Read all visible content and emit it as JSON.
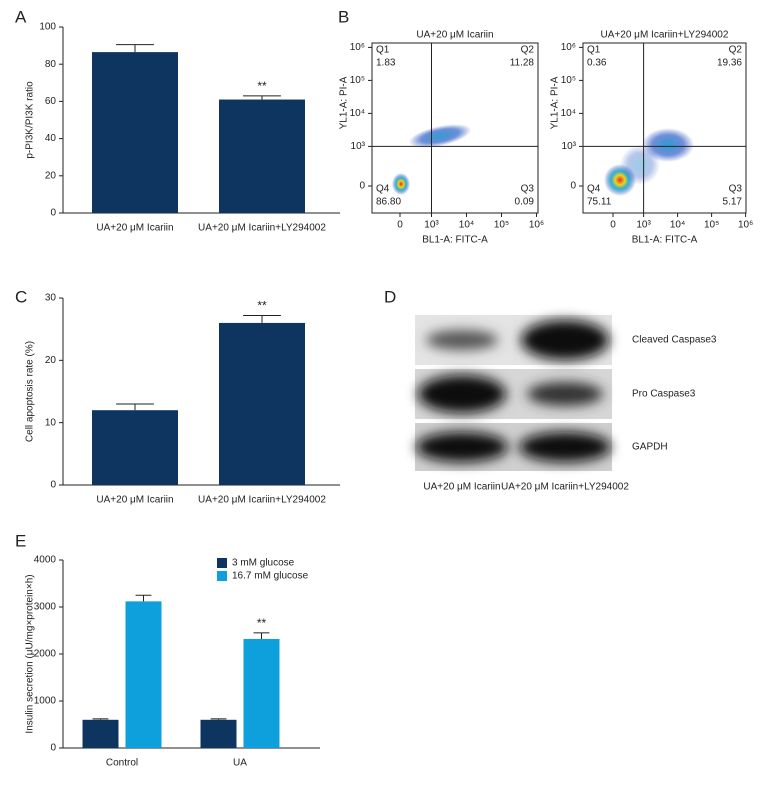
{
  "chart_data": [
    {
      "type": "bar",
      "panel": "A",
      "categories": [
        "UA+20 μM Icariin",
        "UA+20 μM Icariin+LY294002"
      ],
      "values": [
        86.5,
        61
      ],
      "errors": [
        4,
        2
      ],
      "color": "#0e3560",
      "ylabel": "p-PI3K/PI3K ratio",
      "ylim": [
        0,
        100
      ],
      "yticks": [
        0,
        20,
        40,
        60,
        80,
        100
      ],
      "annotations": [
        {
          "text": "**",
          "category": "UA+20 μM Icariin+LY294002"
        }
      ]
    },
    {
      "type": "flow",
      "panel": "B",
      "title": "UA+20 μM Icariin",
      "xlabel": "BL1-A: FITC-A",
      "ylabel": "YL1-A: PI-A",
      "xticks": [
        0,
        {
          "value": 1000,
          "label": "10³"
        },
        {
          "value": 10000,
          "label": "10⁴"
        },
        {
          "value": 100000,
          "label": "10⁵"
        },
        {
          "value": 1000000,
          "label": "10⁶"
        }
      ],
      "yticks": [
        0,
        {
          "value": 1000,
          "label": "10³"
        },
        {
          "value": 10000,
          "label": "10⁴"
        },
        {
          "value": 100000,
          "label": "10⁵"
        },
        {
          "value": 1000000,
          "label": "10⁶"
        }
      ],
      "gates": [
        1000,
        1000
      ],
      "quadrants": [
        "Q1",
        "Q2",
        "Q3",
        "Q4"
      ],
      "values": [
        1.83,
        11.28,
        0.09,
        86.8
      ],
      "value_labels": [
        "1.83",
        "11.28",
        "0.09",
        "86.80"
      ]
    },
    {
      "type": "flow",
      "title": "UA+20 μM Icariin+LY294002",
      "xlabel": "BL1-A: FITC-A",
      "ylabel": "YL1-A: PI-A",
      "xticks": [
        0,
        {
          "value": 1000,
          "label": "10³"
        },
        {
          "value": 10000,
          "label": "10⁴"
        },
        {
          "value": 100000,
          "label": "10⁵"
        },
        {
          "value": 1000000,
          "label": "10⁶"
        }
      ],
      "yticks": [
        0,
        {
          "value": 1000,
          "label": "10³"
        },
        {
          "value": 10000,
          "label": "10⁴"
        },
        {
          "value": 100000,
          "label": "10⁵"
        },
        {
          "value": 1000000,
          "label": "10⁶"
        }
      ],
      "gates": [
        1000,
        1000
      ],
      "quadrants": [
        "Q1",
        "Q2",
        "Q3",
        "Q4"
      ],
      "values": [
        0.36,
        19.36,
        5.17,
        75.11
      ]
    },
    {
      "type": "bar",
      "panel": "C",
      "categories": [
        "UA+20 μM Icariin",
        "UA+20 μM Icariin+LY294002"
      ],
      "values": [
        12,
        26
      ],
      "errors": [
        1,
        1.2
      ],
      "color": "#0e3560",
      "ylabel": "Cell apoptosis rate (%)",
      "ylim": [
        0,
        30
      ],
      "yticks": [
        0,
        10,
        20,
        30
      ],
      "annotations": [
        {
          "text": "**",
          "category": "UA+20 μM Icariin+LY294002"
        }
      ]
    },
    {
      "type": "blot",
      "panel": "D",
      "rows": [
        "Cleaved Caspase3",
        "Pro Caspase3",
        "GAPDH"
      ],
      "lanes": [
        "UA+20 μM Icariin",
        "UA+20 μM Icariin+LY294002"
      ]
    },
    {
      "type": "bar",
      "panel": "E",
      "categories": [
        "Control",
        "UA"
      ],
      "ylabel": "Insulin secretion (μU/mg×protein×h)",
      "ylim": [
        0,
        4000
      ],
      "yticks": [
        0,
        1000,
        2000,
        3000,
        4000
      ],
      "legend": "upper left",
      "series": [
        {
          "name": "3 mM glucose",
          "color": "#0e3560",
          "values": [
            600,
            600
          ],
          "errors": [
            20,
            20
          ]
        },
        {
          "name": "16.7 mM glucose",
          "color": "#0ea0dc",
          "values": [
            3120,
            2320
          ],
          "errors": [
            130,
            130
          ]
        }
      ],
      "annotations": [
        {
          "text": "**",
          "category": "UA",
          "series": "16.7 mM glucose"
        }
      ]
    }
  ]
}
